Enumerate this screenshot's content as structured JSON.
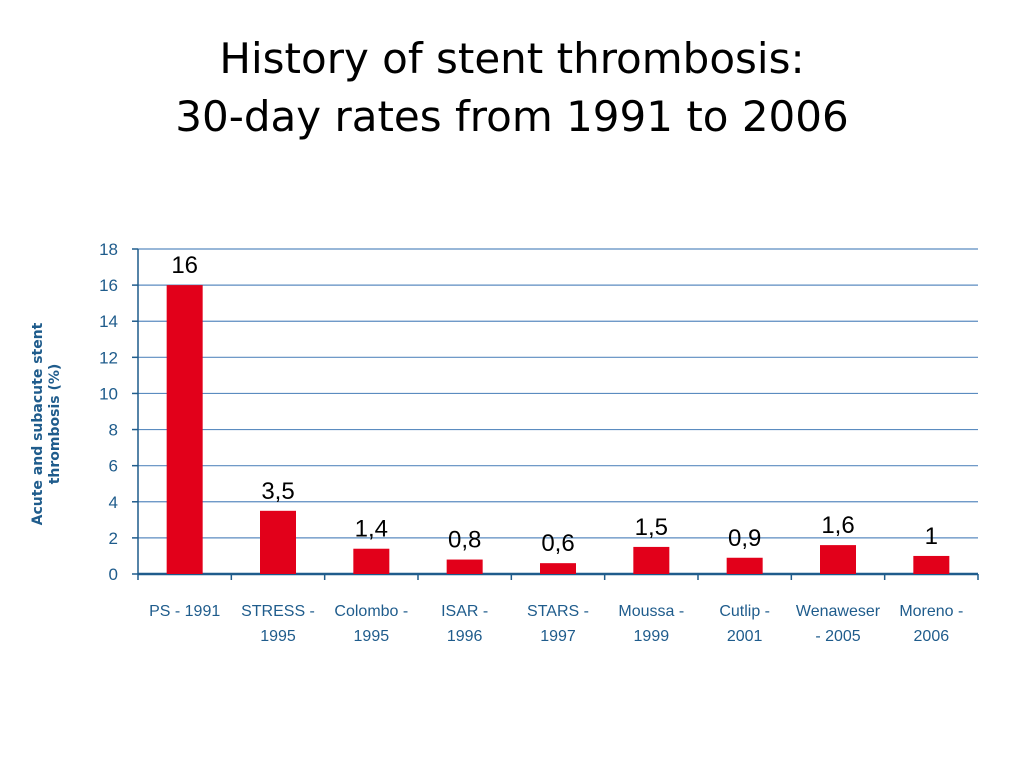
{
  "title": {
    "line1": "History of stent thrombosis:",
    "line2": "30-day rates from 1991 to 2006"
  },
  "chart_data": {
    "type": "bar",
    "categories": [
      "PS - 1991",
      "STRESS - 1995",
      "Colombo - 1995",
      "ISAR - 1996",
      "STARS - 1997",
      "Moussa - 1999",
      "Cutlip - 2001",
      "Wenaweser - 2005",
      "Moreno - 2006"
    ],
    "category_lines": [
      [
        "PS - 1991"
      ],
      [
        "STRESS -",
        "1995"
      ],
      [
        "Colombo -",
        "1995"
      ],
      [
        "ISAR -",
        "1996"
      ],
      [
        "STARS -",
        "1997"
      ],
      [
        "Moussa -",
        "1999"
      ],
      [
        "Cutlip -",
        "2001"
      ],
      [
        "Wenaweser",
        "- 2005"
      ],
      [
        "Moreno -",
        "2006"
      ]
    ],
    "values": [
      16,
      3.5,
      1.4,
      0.8,
      0.6,
      1.5,
      0.9,
      1.6,
      1
    ],
    "data_labels": [
      "16",
      "3,5",
      "1,4",
      "0,8",
      "0,6",
      "1,5",
      "0,9",
      "1,6",
      "1"
    ],
    "ylabel": "Acute and subacute stent\nthrombosis (%)",
    "xlabel": "",
    "ylim": [
      0,
      18
    ],
    "yticks": [
      0,
      2,
      4,
      6,
      8,
      10,
      12,
      14,
      16,
      18
    ],
    "grid": true,
    "legend": "none",
    "colors": {
      "bar": "#e2001a",
      "grid": "#5b8cc0",
      "axis": "#1f5c8c",
      "tick_text": "#1f5c8c",
      "data_label": "#000000"
    }
  }
}
